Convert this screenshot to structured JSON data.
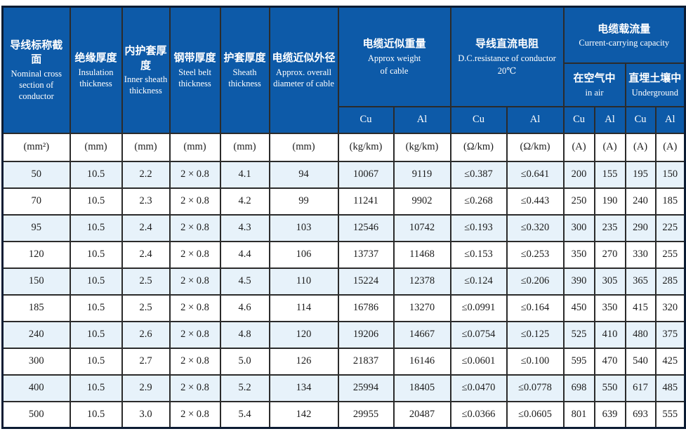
{
  "table": {
    "colors": {
      "header_bg": "#0d5aa8",
      "header_text": "#ffffff",
      "stripe_row_bg": "#e7f2fa",
      "plain_row_bg": "#ffffff",
      "grid_line": "#2b2b2b",
      "outer_border": "#0c1c33"
    },
    "header": {
      "nominal_section": {
        "zh": "导线标称截面",
        "en": "Nominal cross section of conductor"
      },
      "insulation": {
        "zh": "绝缘厚度",
        "en": "Insulation thickness"
      },
      "inner_sheath": {
        "zh": "内护套厚度",
        "en": "Inner sheath thickness"
      },
      "steel_belt": {
        "zh": "钢带厚度",
        "en": "Steel belt thickness"
      },
      "sheath": {
        "zh": "护套厚度",
        "en": "Sheath thickness"
      },
      "diameter": {
        "zh": "电缆近似外径",
        "en": "Approx. overall diameter of cable"
      },
      "weight": {
        "zh": "电缆近似重量",
        "en": "Approx weight",
        "en2": "of cable"
      },
      "resistance": {
        "zh": "导线直流电阻",
        "en": "D.C.resistance of conductor",
        "en2": "20℃"
      },
      "capacity": {
        "zh": "电缆载流量",
        "en": "Current-carrying capacity"
      },
      "in_air": {
        "zh": "在空气中",
        "en": "in air"
      },
      "underground": {
        "zh": "直埋土壤中",
        "en": "Underground"
      }
    },
    "cu_al": [
      "Cu",
      "Al",
      "Cu",
      "Al",
      "Cu",
      "Al",
      "Cu",
      "Al"
    ],
    "units": [
      "(mm²)",
      "(mm)",
      "(mm)",
      "(mm)",
      "(mm)",
      "(mm)",
      "(kg/km)",
      "(kg/km)",
      "(Ω/km)",
      "(Ω/km)",
      "(A)",
      "(A)",
      "(A)",
      "(A)"
    ],
    "rows": [
      [
        "50",
        "10.5",
        "2.2",
        "2 × 0.8",
        "4.1",
        "94",
        "10067",
        "9119",
        "≤0.387",
        "≤0.641",
        "200",
        "155",
        "195",
        "150"
      ],
      [
        "70",
        "10.5",
        "2.3",
        "2 × 0.8",
        "4.2",
        "99",
        "11241",
        "9902",
        "≤0.268",
        "≤0.443",
        "250",
        "190",
        "240",
        "185"
      ],
      [
        "95",
        "10.5",
        "2.4",
        "2 × 0.8",
        "4.3",
        "103",
        "12546",
        "10742",
        "≤0.193",
        "≤0.320",
        "300",
        "235",
        "290",
        "225"
      ],
      [
        "120",
        "10.5",
        "2.4",
        "2 × 0.8",
        "4.4",
        "106",
        "13737",
        "11468",
        "≤0.153",
        "≤0.253",
        "350",
        "270",
        "330",
        "255"
      ],
      [
        "150",
        "10.5",
        "2.5",
        "2 × 0.8",
        "4.5",
        "110",
        "15224",
        "12378",
        "≤0.124",
        "≤0.206",
        "390",
        "305",
        "365",
        "285"
      ],
      [
        "185",
        "10.5",
        "2.5",
        "2 × 0.8",
        "4.6",
        "114",
        "16786",
        "13270",
        "≤0.0991",
        "≤0.164",
        "450",
        "350",
        "415",
        "320"
      ],
      [
        "240",
        "10.5",
        "2.6",
        "2 × 0.8",
        "4.8",
        "120",
        "19206",
        "14667",
        "≤0.0754",
        "≤0.125",
        "525",
        "410",
        "480",
        "375"
      ],
      [
        "300",
        "10.5",
        "2.7",
        "2 × 0.8",
        "5.0",
        "126",
        "21837",
        "16146",
        "≤0.0601",
        "≤0.100",
        "595",
        "470",
        "540",
        "425"
      ],
      [
        "400",
        "10.5",
        "2.9",
        "2 × 0.8",
        "5.2",
        "134",
        "25994",
        "18405",
        "≤0.0470",
        "≤0.0778",
        "698",
        "550",
        "617",
        "485"
      ],
      [
        "500",
        "10.5",
        "3.0",
        "2 × 0.8",
        "5.4",
        "142",
        "29955",
        "20487",
        "≤0.0366",
        "≤0.0605",
        "801",
        "639",
        "693",
        "555"
      ]
    ]
  }
}
